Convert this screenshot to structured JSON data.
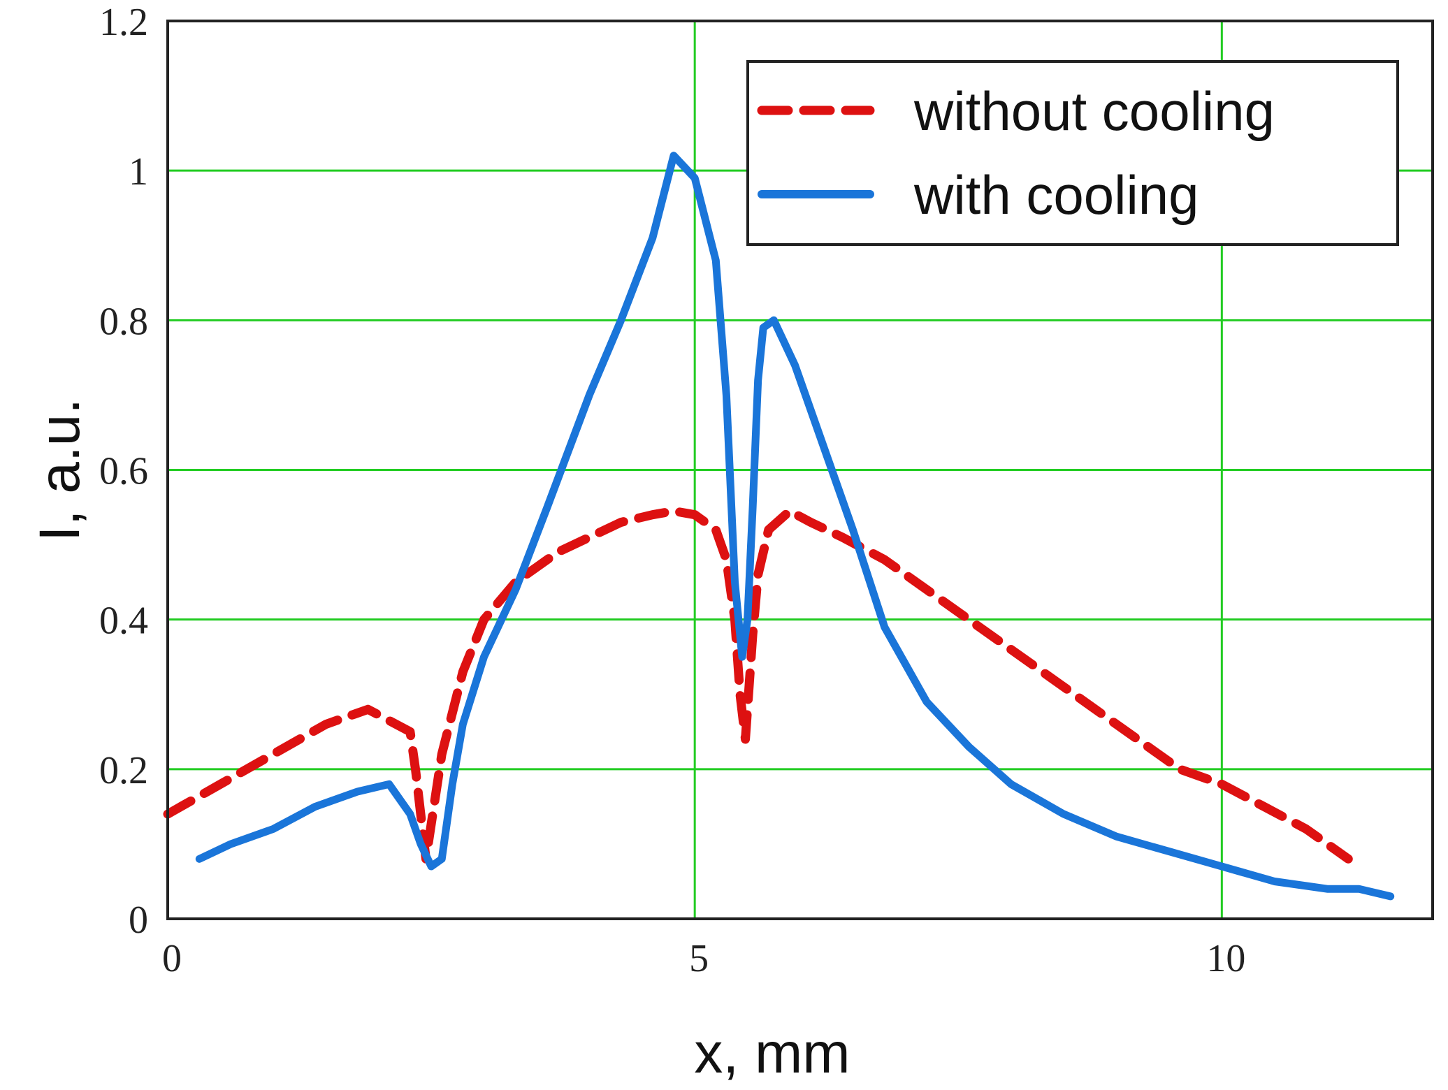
{
  "chart_data": {
    "type": "line",
    "title": "",
    "xlabel": "x, mm",
    "ylabel": "I, a.u.",
    "xlim": [
      0,
      12
    ],
    "ylim": [
      0,
      1.2
    ],
    "x_ticks": [
      "0",
      "5",
      "10"
    ],
    "y_ticks": [
      "0",
      "0.2",
      "0.4",
      "0.6",
      "0.8",
      "1",
      "1.2"
    ],
    "x_tick_values": [
      0,
      5,
      10
    ],
    "y_tick_values": [
      0,
      0.2,
      0.4,
      0.6,
      0.8,
      1.0,
      1.2
    ],
    "grid": true,
    "grid_color": "#22cc22",
    "legend_position": "top-right",
    "series": [
      {
        "name": "without cooling",
        "color": "#dd1111",
        "style": "dashed",
        "x": [
          0.0,
          0.5,
          1.0,
          1.5,
          1.9,
          2.3,
          2.35,
          2.45,
          2.6,
          2.8,
          3.0,
          3.3,
          3.7,
          4.0,
          4.3,
          4.6,
          4.8,
          5.0,
          5.2,
          5.3,
          5.38,
          5.43,
          5.48,
          5.5,
          5.55,
          5.6,
          5.7,
          5.9,
          6.1,
          6.4,
          6.8,
          7.2,
          7.6,
          8.0,
          8.4,
          8.8,
          9.2,
          9.6,
          10.0,
          10.4,
          10.8,
          11.2
        ],
        "y": [
          0.14,
          0.18,
          0.22,
          0.26,
          0.28,
          0.25,
          0.2,
          0.08,
          0.22,
          0.33,
          0.4,
          0.45,
          0.49,
          0.51,
          0.53,
          0.54,
          0.545,
          0.54,
          0.52,
          0.48,
          0.4,
          0.3,
          0.24,
          0.28,
          0.38,
          0.46,
          0.52,
          0.545,
          0.53,
          0.51,
          0.48,
          0.44,
          0.4,
          0.36,
          0.32,
          0.28,
          0.24,
          0.2,
          0.18,
          0.15,
          0.12,
          0.08
        ]
      },
      {
        "name": "with cooling",
        "color": "#1a75d9",
        "style": "solid",
        "x": [
          0.3,
          0.6,
          1.0,
          1.4,
          1.8,
          2.1,
          2.3,
          2.4,
          2.5,
          2.6,
          2.7,
          2.8,
          3.0,
          3.3,
          3.6,
          4.0,
          4.3,
          4.6,
          4.8,
          5.0,
          5.2,
          5.3,
          5.38,
          5.45,
          5.5,
          5.55,
          5.6,
          5.65,
          5.75,
          5.95,
          6.2,
          6.5,
          6.8,
          7.2,
          7.6,
          8.0,
          8.5,
          9.0,
          9.5,
          10.0,
          10.5,
          11.0,
          11.3,
          11.6
        ],
        "y": [
          0.08,
          0.1,
          0.12,
          0.15,
          0.17,
          0.18,
          0.14,
          0.1,
          0.07,
          0.08,
          0.18,
          0.26,
          0.35,
          0.44,
          0.55,
          0.7,
          0.8,
          0.91,
          1.02,
          0.99,
          0.88,
          0.7,
          0.45,
          0.35,
          0.4,
          0.55,
          0.72,
          0.79,
          0.8,
          0.74,
          0.64,
          0.52,
          0.39,
          0.29,
          0.23,
          0.18,
          0.14,
          0.11,
          0.09,
          0.07,
          0.05,
          0.04,
          0.04,
          0.03
        ]
      }
    ]
  }
}
